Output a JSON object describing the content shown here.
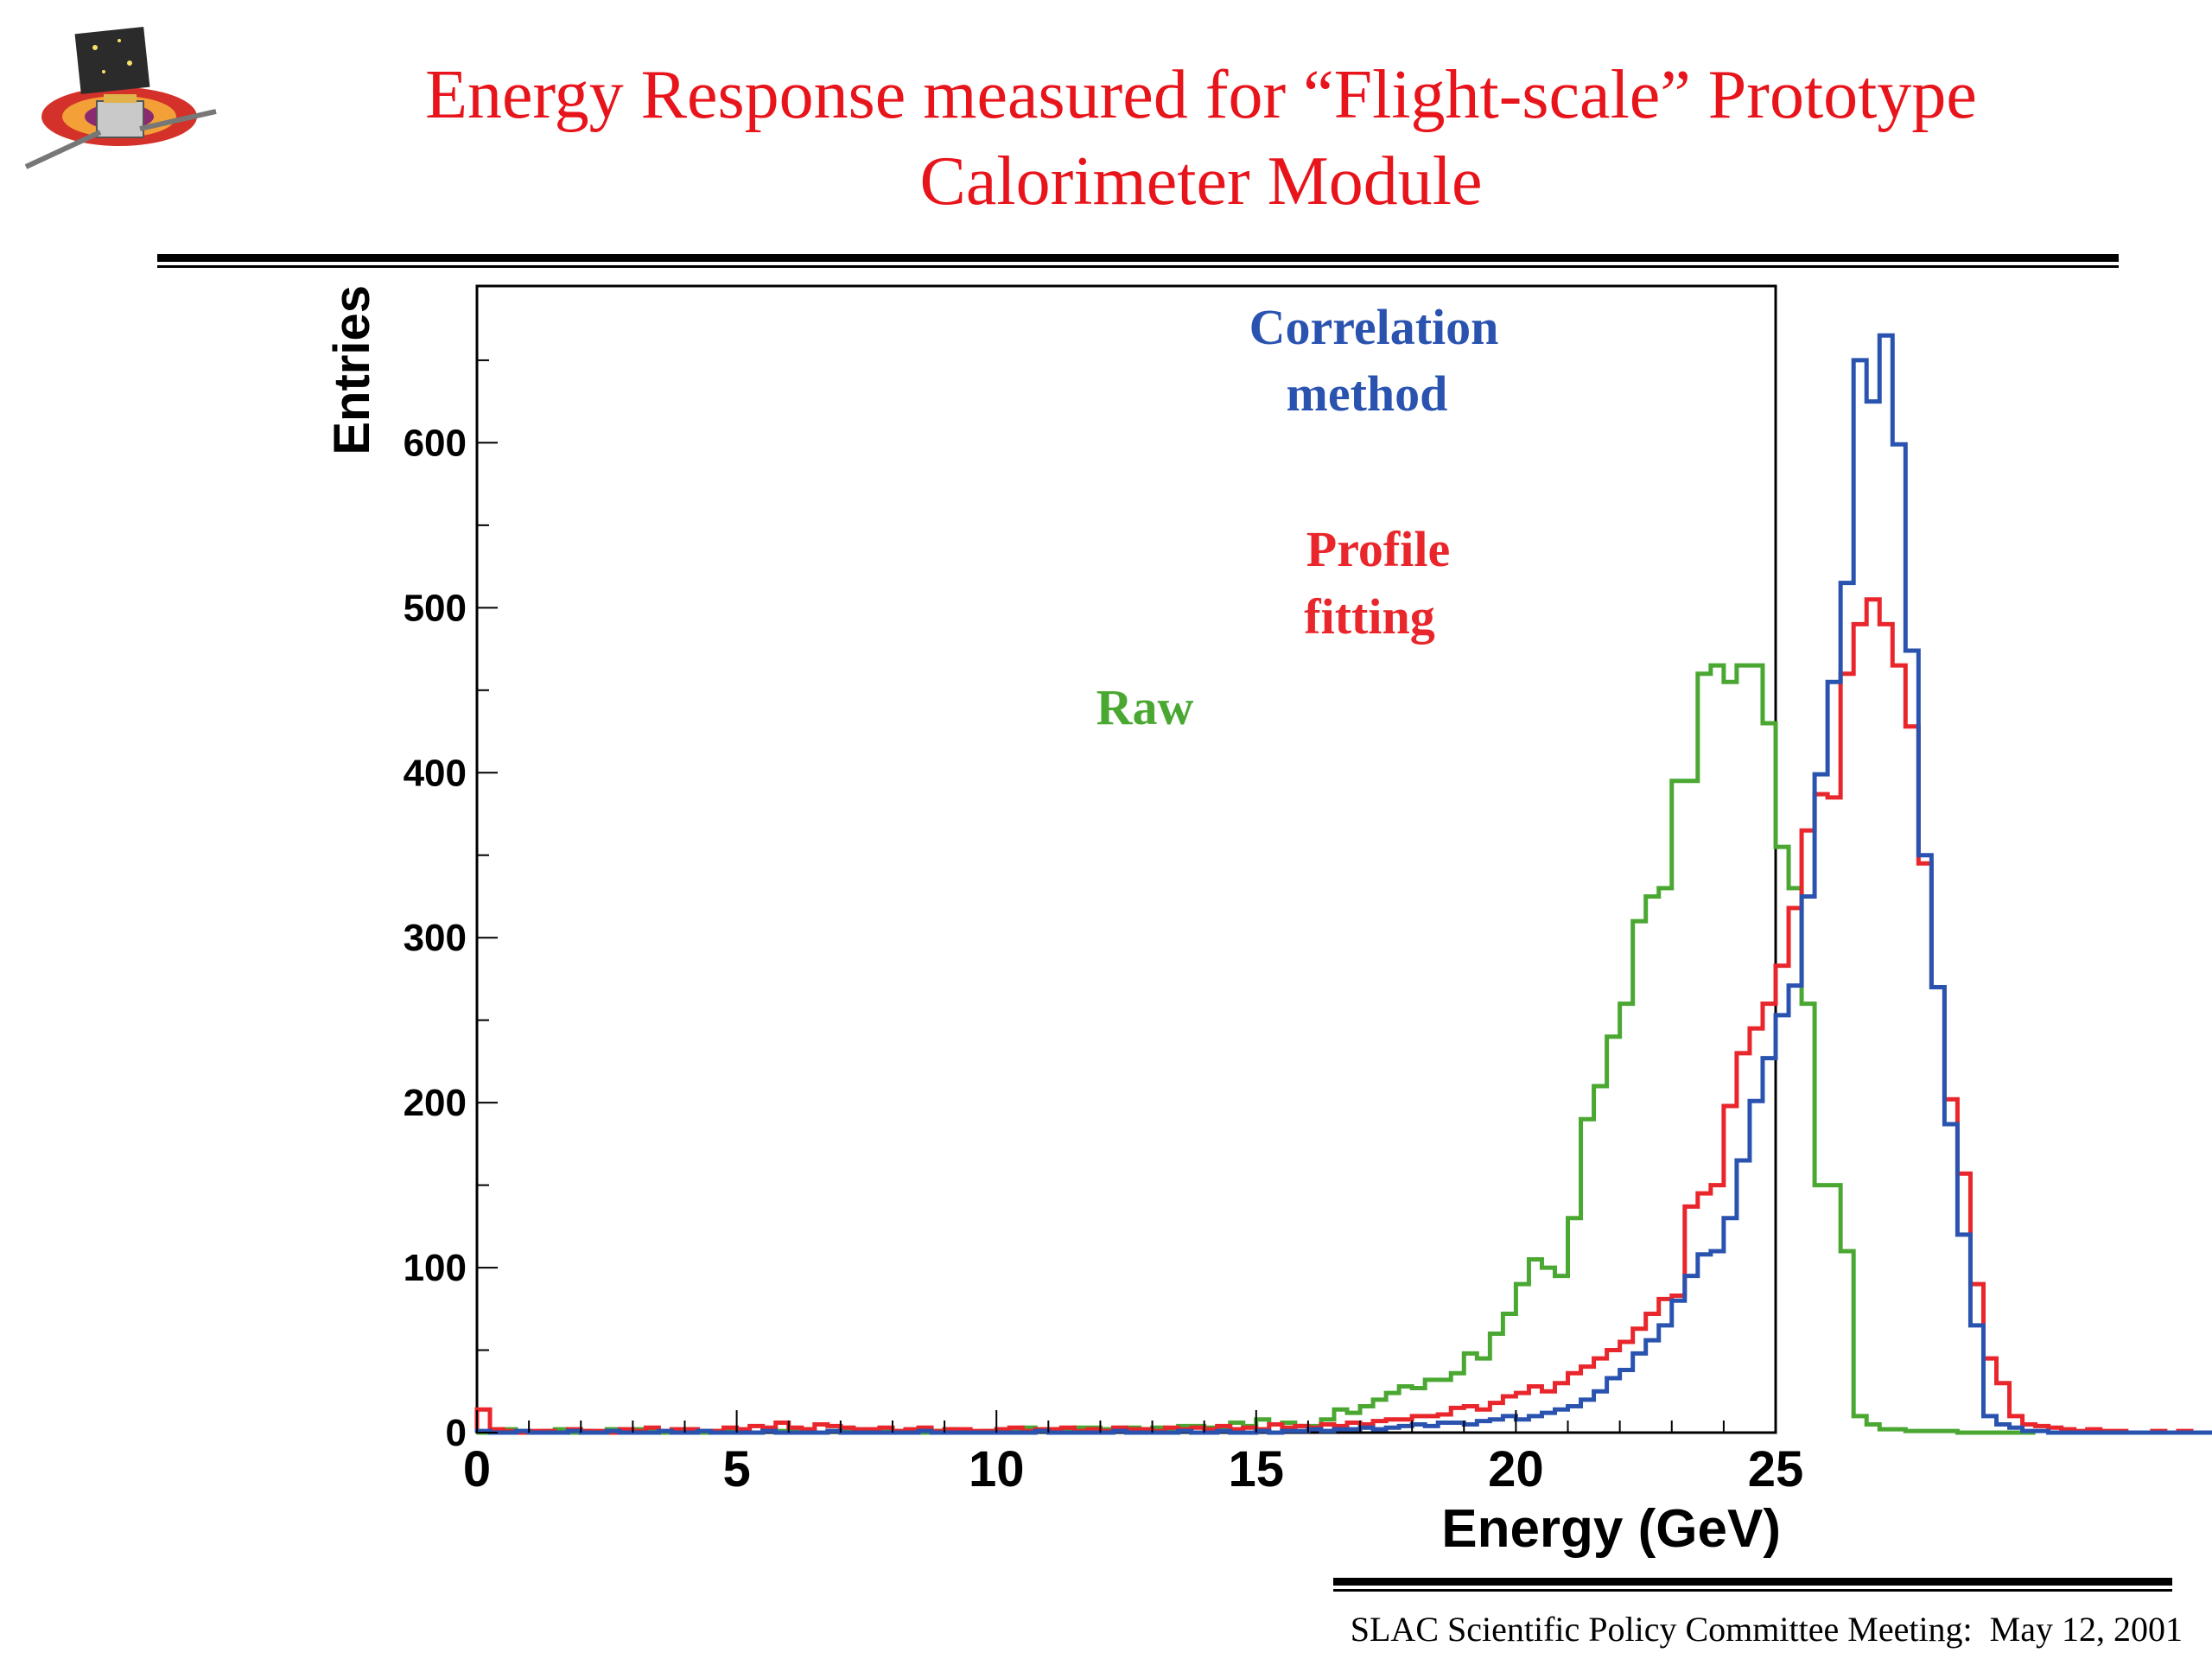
{
  "slide": {
    "title_line1": "Energy Response measured for “Flight-scale” Prototype",
    "title_line2": "Calorimeter Module",
    "footer": "SLAC Scientific Policy Committee Meeting:  May 12, 2001",
    "title_color": "#e8141b"
  },
  "chart_data": {
    "type": "line",
    "style": "histogram-step",
    "title": "",
    "xlabel": "Energy (GeV)",
    "ylabel": "Entries",
    "xlim": [
      0,
      25
    ],
    "ylim": [
      0,
      695
    ],
    "xticks": [
      0,
      5,
      10,
      15,
      20,
      25
    ],
    "yticks": [
      0,
      100,
      200,
      300,
      400,
      500,
      600
    ],
    "grid": false,
    "bin_width": 0.25,
    "series": [
      {
        "name": "Raw",
        "color": "#4aa832",
        "label_lines": [
          "Raw"
        ],
        "values": [
          0,
          1,
          2,
          1,
          0,
          1,
          2,
          0,
          1,
          0,
          2,
          1,
          2,
          1,
          0,
          1,
          2,
          0,
          1,
          2,
          1,
          0,
          2,
          1,
          1,
          2,
          0,
          1,
          2,
          1,
          0,
          2,
          1,
          1,
          0,
          1,
          2,
          1,
          0,
          1,
          2,
          2,
          3,
          1,
          2,
          1,
          3,
          3,
          2,
          2,
          3,
          2,
          3,
          1,
          4,
          4,
          3,
          3,
          6,
          4,
          8,
          5,
          6,
          4,
          4,
          8,
          14,
          12,
          16,
          20,
          24,
          28,
          27,
          32,
          32,
          36,
          48,
          45,
          60,
          72,
          90,
          105,
          100,
          95,
          130,
          190,
          210,
          240,
          260,
          310,
          325,
          330,
          395,
          395,
          460,
          465,
          455,
          465,
          465,
          430,
          355,
          330,
          260,
          150,
          150,
          110,
          10,
          5,
          2,
          2,
          1,
          1,
          1,
          1,
          0,
          0,
          0,
          0,
          0,
          0
        ]
      },
      {
        "name": "Profile fitting",
        "color": "#e8262b",
        "label_lines": [
          "Profile",
          "fitting"
        ],
        "values": [
          14,
          2,
          1,
          0,
          1,
          1,
          0,
          2,
          1,
          1,
          0,
          2,
          1,
          3,
          1,
          2,
          2,
          1,
          1,
          3,
          2,
          4,
          3,
          6,
          3,
          2,
          5,
          4,
          3,
          2,
          2,
          3,
          1,
          2,
          3,
          1,
          2,
          2,
          1,
          1,
          2,
          3,
          1,
          2,
          2,
          3,
          1,
          2,
          1,
          3,
          2,
          2,
          1,
          3,
          2,
          3,
          2,
          4,
          2,
          3,
          2,
          5,
          3,
          4,
          3,
          5,
          4,
          6,
          5,
          7,
          8,
          8,
          10,
          10,
          11,
          15,
          16,
          14,
          18,
          22,
          24,
          28,
          25,
          30,
          36,
          40,
          45,
          50,
          55,
          63,
          72,
          81,
          83,
          137,
          145,
          150,
          198,
          230,
          245,
          260,
          283,
          318,
          365,
          387,
          385,
          460,
          490,
          505,
          490,
          465,
          428,
          345,
          270,
          202,
          157,
          90,
          45,
          30,
          10,
          5,
          4,
          3,
          2,
          1,
          2,
          1,
          1,
          0,
          0,
          1,
          0,
          1,
          0,
          0,
          0,
          0,
          0,
          0,
          0,
          0
        ]
      },
      {
        "name": "Correlation method",
        "color": "#2a53b0",
        "label_lines": [
          "Correlation",
          "method"
        ],
        "values": [
          1,
          0,
          0,
          1,
          0,
          0,
          0,
          1,
          0,
          0,
          1,
          0,
          0,
          0,
          1,
          0,
          0,
          1,
          0,
          0,
          0,
          0,
          1,
          0,
          0,
          0,
          0,
          1,
          0,
          0,
          0,
          0,
          0,
          0,
          1,
          0,
          0,
          0,
          0,
          0,
          0,
          0,
          0,
          1,
          0,
          0,
          0,
          0,
          0,
          1,
          0,
          0,
          0,
          0,
          1,
          0,
          0,
          1,
          0,
          0,
          1,
          0,
          1,
          1,
          2,
          1,
          2,
          2,
          3,
          2,
          3,
          4,
          5,
          4,
          6,
          6,
          5,
          7,
          8,
          10,
          8,
          10,
          12,
          14,
          16,
          20,
          25,
          33,
          38,
          48,
          56,
          65,
          80,
          95,
          108,
          110,
          130,
          165,
          201,
          227,
          253,
          271,
          325,
          399,
          455,
          515,
          650,
          625,
          665,
          599,
          474,
          350,
          270,
          187,
          120,
          65,
          10,
          5,
          3,
          1,
          1,
          0,
          0,
          0,
          0,
          0,
          0,
          0,
          0,
          0,
          0,
          0,
          0,
          0,
          0,
          0,
          0,
          0,
          0,
          0
        ],
        "bins_note": ""
      }
    ],
    "legend": "inline labels near peaks"
  }
}
